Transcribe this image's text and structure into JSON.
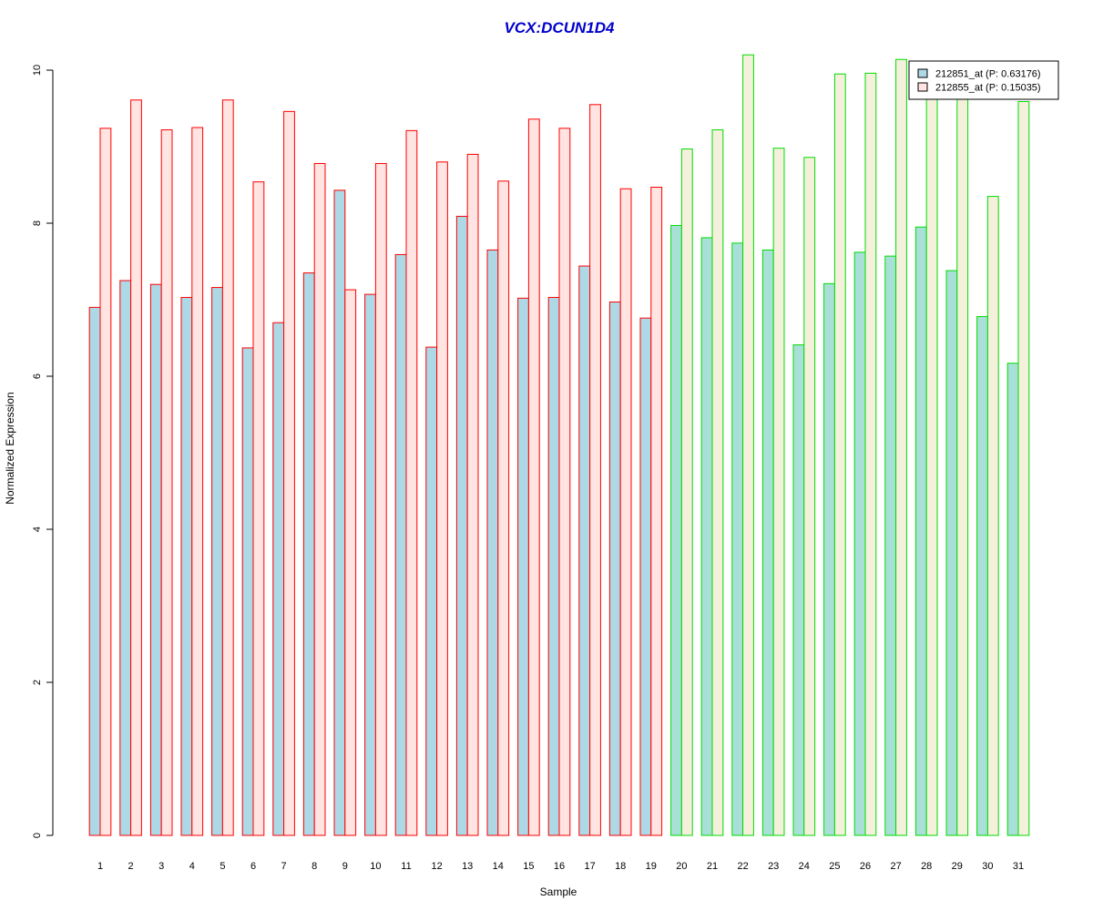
{
  "chart_data": {
    "type": "bar",
    "title": "VCX:DCUN1D4",
    "xlabel": "Sample",
    "ylabel": "Normalized Expression",
    "ylim": [
      0,
      10
    ],
    "yticks": [
      0,
      2,
      4,
      6,
      8,
      10
    ],
    "categories": [
      "1",
      "2",
      "3",
      "4",
      "5",
      "6",
      "7",
      "8",
      "9",
      "10",
      "11",
      "12",
      "13",
      "14",
      "15",
      "16",
      "17",
      "18",
      "19",
      "20",
      "21",
      "22",
      "23",
      "24",
      "25",
      "26",
      "27",
      "28",
      "29",
      "30",
      "31"
    ],
    "groups": [
      {
        "samples": 19,
        "border_color": "#ff0000"
      },
      {
        "samples": 12,
        "border_color": "#00dd00"
      }
    ],
    "series": [
      {
        "name": "212851_at (P: 0.63176)",
        "fill_group1": "#add8e6",
        "fill_group2": "#a8e0d8",
        "values": [
          6.9,
          7.25,
          7.2,
          7.03,
          7.16,
          6.37,
          6.7,
          7.35,
          8.43,
          7.07,
          7.59,
          6.38,
          8.09,
          7.65,
          7.02,
          7.03,
          7.44,
          6.97,
          6.76,
          7.97,
          7.81,
          7.74,
          7.65,
          6.41,
          7.21,
          7.62,
          7.57,
          7.95,
          7.38,
          6.78,
          6.17
        ]
      },
      {
        "name": "212855_at (P: 0.15035)",
        "fill_group1": "#ffe4e1",
        "fill_group2": "#f5f0dc",
        "values": [
          9.24,
          9.61,
          9.22,
          9.25,
          9.61,
          8.54,
          9.46,
          8.78,
          7.13,
          8.78,
          9.21,
          8.8,
          8.9,
          8.55,
          9.36,
          9.24,
          9.55,
          8.45,
          8.47,
          8.97,
          9.22,
          10.2,
          8.98,
          8.86,
          9.95,
          9.96,
          10.14,
          9.75,
          9.7,
          8.35,
          9.59
        ]
      }
    ],
    "legend_placement": "top-right",
    "grid": false,
    "title_color": "#0000cc"
  }
}
